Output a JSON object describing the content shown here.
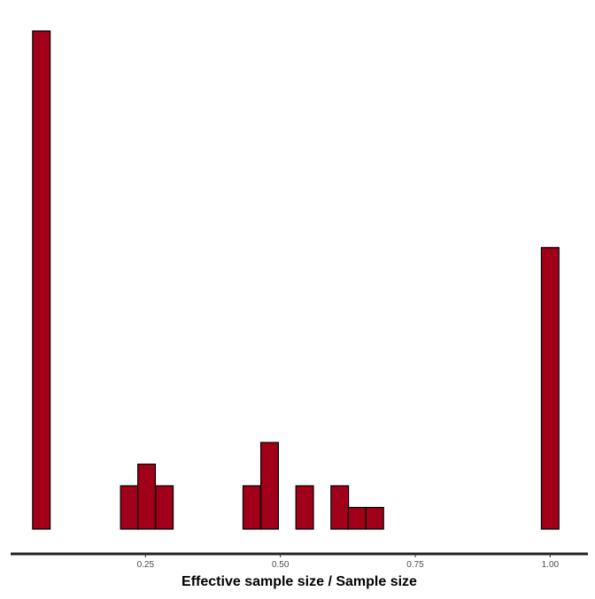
{
  "chart_data": {
    "type": "bar",
    "title": "",
    "xlabel": "Effective sample size / Sample size",
    "ylabel": "",
    "xlim": [
      0.0,
      1.07
    ],
    "ylim": [
      0,
      23
    ],
    "xticks": [
      0.25,
      0.5,
      0.75,
      1.0
    ],
    "xtick_labels": [
      "0.25",
      "0.50",
      "0.75",
      "1.00"
    ],
    "bin_width": 0.0325,
    "grid": false,
    "series": [
      {
        "bin_centers": [
          0.057,
          0.09,
          0.122,
          0.155,
          0.187,
          0.22,
          0.252,
          0.285,
          0.317,
          0.35,
          0.382,
          0.415,
          0.447,
          0.48,
          0.512,
          0.545,
          0.577,
          0.61,
          0.642,
          0.675,
          0.707,
          0.74,
          0.772,
          0.805,
          0.837,
          0.87,
          0.902,
          0.935,
          0.967,
          1.0
        ],
        "values": [
          23,
          0,
          0,
          0,
          0,
          2,
          3,
          2,
          0,
          0,
          0,
          0,
          2,
          4,
          0,
          2,
          0,
          2,
          1,
          1,
          0,
          0,
          0,
          0,
          0,
          0,
          0,
          0,
          0,
          13
        ]
      }
    ],
    "colors": {
      "bar_fill": "#a0001a",
      "bar_stroke": "#000000",
      "axis_line": "#222222"
    }
  }
}
